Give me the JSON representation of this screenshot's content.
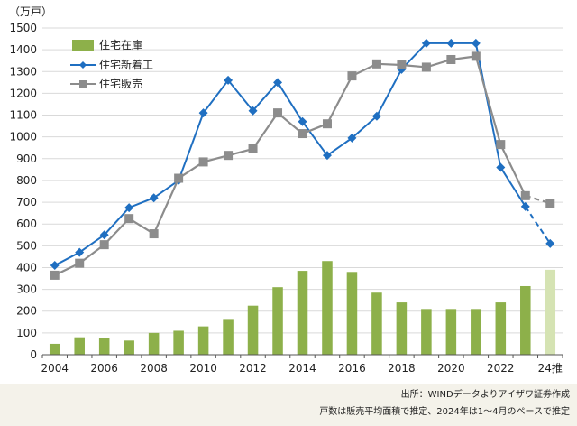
{
  "chart_data": {
    "type": "bar+line",
    "y_unit": "（万戸）",
    "ylim": [
      0,
      1500
    ],
    "y_ticks": [
      0,
      100,
      200,
      300,
      400,
      500,
      600,
      700,
      800,
      900,
      1000,
      1100,
      1200,
      1300,
      1400,
      1500
    ],
    "categories": [
      "2004",
      "2005",
      "2006",
      "2007",
      "2008",
      "2009",
      "2010",
      "2011",
      "2012",
      "2013",
      "2014",
      "2015",
      "2016",
      "2017",
      "2018",
      "2019",
      "2020",
      "2021",
      "2022",
      "2023",
      "24推"
    ],
    "x_tick_labels": [
      {
        "index": 0,
        "label": "2004"
      },
      {
        "index": 2,
        "label": "2006"
      },
      {
        "index": 4,
        "label": "2008"
      },
      {
        "index": 6,
        "label": "2010"
      },
      {
        "index": 8,
        "label": "2012"
      },
      {
        "index": 10,
        "label": "2014"
      },
      {
        "index": 12,
        "label": "2016"
      },
      {
        "index": 14,
        "label": "2018"
      },
      {
        "index": 16,
        "label": "2020"
      },
      {
        "index": 18,
        "label": "2022"
      },
      {
        "index": 20,
        "label": "24推"
      }
    ],
    "grid": true,
    "legend_position": "top-left",
    "series": [
      {
        "name": "住宅在庫",
        "kind": "bar",
        "color": "#8db04a",
        "estimate_color": "#d5e3b3",
        "values": [
          50,
          80,
          75,
          65,
          100,
          110,
          130,
          160,
          225,
          310,
          385,
          430,
          380,
          285,
          240,
          210,
          210,
          210,
          240,
          315,
          390
        ]
      },
      {
        "name": "住宅新着工",
        "kind": "line",
        "color": "#1f6fc1",
        "marker": "diamond",
        "values": [
          410,
          470,
          550,
          675,
          720,
          800,
          1110,
          1260,
          1120,
          1250,
          1070,
          915,
          995,
          1095,
          1310,
          1430,
          1430,
          1430,
          860,
          680,
          510
        ],
        "dashed_from_index": 19
      },
      {
        "name": "住宅販売",
        "kind": "line",
        "color": "#8c8c8c",
        "marker": "square",
        "values": [
          365,
          420,
          505,
          625,
          555,
          810,
          885,
          915,
          945,
          1110,
          1015,
          1060,
          1280,
          1335,
          1330,
          1320,
          1355,
          1370,
          965,
          730,
          695
        ],
        "dashed_from_index": 19
      }
    ]
  },
  "notes": {
    "source": "出所：WINDデータよりアイザワ証券作成",
    "footnote": "戸数は販売平均面積で推定、2024年は1～4月のペースで推定"
  }
}
